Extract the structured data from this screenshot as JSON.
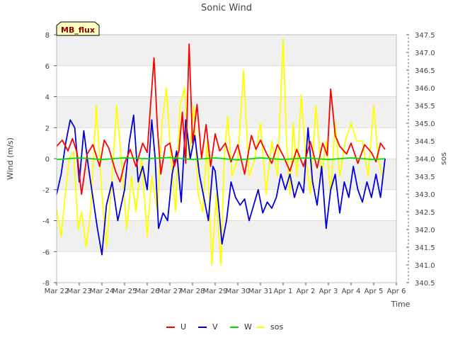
{
  "chart_data": {
    "type": "line",
    "title": "Sonic Wind",
    "xlabel": "Time",
    "ylabel": "Wind (m/s)",
    "y2label": "sos",
    "badge": "MB_flux",
    "x_ticks": [
      "Mar 22",
      "Mar 23",
      "Mar 24",
      "Mar 25",
      "Mar 26",
      "Mar 27",
      "Mar 28",
      "Mar 29",
      "Mar 30",
      "Mar 31",
      "Apr 1",
      "Apr 2",
      "Apr 3",
      "Apr 4",
      "Apr 5",
      "Apr 6"
    ],
    "xlim": [
      0,
      15
    ],
    "ylim": [
      -8,
      8
    ],
    "y_ticks": [
      "-8",
      "-6",
      "-4",
      "-2",
      "0",
      "2",
      "4",
      "6",
      "8"
    ],
    "y2lim": [
      340.5,
      347.5
    ],
    "y2_ticks": [
      "340.5",
      "341.0",
      "341.5",
      "342.0",
      "342.5",
      "343.0",
      "343.5",
      "344.0",
      "344.5",
      "345.0",
      "345.5",
      "346.0",
      "346.5",
      "347.0",
      "347.5"
    ],
    "legend_position": "bottom-center",
    "series": [
      {
        "name": "U",
        "color": "#ff0000",
        "axis": "left",
        "x": [
          0.0,
          0.25,
          0.5,
          0.7,
          0.9,
          1.1,
          1.35,
          1.6,
          1.9,
          2.1,
          2.3,
          2.6,
          2.8,
          3.0,
          3.25,
          3.5,
          3.8,
          4.0,
          4.15,
          4.3,
          4.45,
          4.6,
          4.8,
          5.0,
          5.2,
          5.4,
          5.55,
          5.7,
          5.85,
          6.0,
          6.2,
          6.4,
          6.6,
          6.8,
          7.0,
          7.2,
          7.45,
          7.7,
          8.0,
          8.3,
          8.6,
          8.8,
          9.0,
          9.25,
          9.5,
          9.75,
          10.0,
          10.3,
          10.6,
          10.9,
          11.2,
          11.5,
          11.75,
          11.95,
          12.1,
          12.3,
          12.5,
          12.8,
          13.0,
          13.3,
          13.6,
          13.9,
          14.1,
          14.3,
          14.5
        ],
        "values": [
          0.8,
          1.2,
          0.5,
          1.3,
          0.4,
          -2.3,
          0.3,
          0.9,
          -0.5,
          1.2,
          0.7,
          -0.8,
          -1.5,
          -0.3,
          0.6,
          -0.5,
          1.0,
          0.4,
          3.5,
          6.5,
          2.0,
          -1.0,
          0.8,
          1.0,
          -0.5,
          0.5,
          3.0,
          -0.3,
          7.4,
          1.0,
          3.5,
          0.0,
          2.2,
          -0.5,
          1.6,
          0.5,
          1.0,
          -0.2,
          0.9,
          -1.0,
          1.5,
          0.6,
          1.2,
          0.4,
          -0.3,
          0.9,
          0.2,
          -0.8,
          0.6,
          -0.5,
          1.1,
          -0.6,
          1.0,
          0.2,
          4.5,
          1.5,
          0.8,
          0.3,
          1.0,
          -0.3,
          0.9,
          0.4,
          -0.2,
          1.0,
          0.6
        ]
      },
      {
        "name": "V",
        "color": "#0000dd",
        "axis": "left",
        "x": [
          0.0,
          0.2,
          0.4,
          0.6,
          0.8,
          1.0,
          1.2,
          1.4,
          1.6,
          1.8,
          2.0,
          2.2,
          2.45,
          2.7,
          3.0,
          3.2,
          3.4,
          3.6,
          3.8,
          4.0,
          4.2,
          4.35,
          4.5,
          4.7,
          4.9,
          5.1,
          5.3,
          5.5,
          5.7,
          5.9,
          6.1,
          6.3,
          6.5,
          6.7,
          6.9,
          7.0,
          7.15,
          7.3,
          7.5,
          7.7,
          7.9,
          8.1,
          8.3,
          8.5,
          8.7,
          8.9,
          9.1,
          9.3,
          9.5,
          9.7,
          9.9,
          10.1,
          10.3,
          10.5,
          10.7,
          10.9,
          11.1,
          11.3,
          11.5,
          11.7,
          11.9,
          12.1,
          12.3,
          12.5,
          12.7,
          12.9,
          13.1,
          13.3,
          13.5,
          13.7,
          13.9,
          14.1,
          14.3,
          14.5
        ],
        "values": [
          -2.3,
          -1.0,
          1.0,
          2.5,
          2.0,
          -1.5,
          1.8,
          -0.5,
          -2.5,
          -4.5,
          -6.2,
          -3.0,
          -1.5,
          -4.0,
          -2.0,
          1.0,
          2.8,
          -1.5,
          -0.5,
          -2.0,
          2.5,
          0.0,
          -4.5,
          -3.5,
          -4.0,
          -1.0,
          0.5,
          -2.8,
          2.5,
          0.0,
          1.5,
          -1.0,
          -2.5,
          -4.0,
          -0.5,
          -0.8,
          -3.0,
          -5.5,
          -4.0,
          -1.5,
          -2.5,
          -3.0,
          -2.6,
          -4.0,
          -3.0,
          -2.0,
          -3.5,
          -2.8,
          -3.2,
          -2.5,
          -1.0,
          -2.0,
          -1.0,
          -2.5,
          -1.5,
          -2.2,
          2.0,
          -1.5,
          -3.0,
          -0.5,
          -4.5,
          -2.0,
          -1.0,
          -3.5,
          -1.5,
          -2.5,
          -0.5,
          -2.0,
          -2.8,
          -1.5,
          -2.5,
          -1.0,
          -2.5,
          0.0
        ]
      },
      {
        "name": "W",
        "color": "#00dd00",
        "axis": "left",
        "x": [
          0.0,
          1.0,
          2.0,
          3.0,
          4.0,
          5.0,
          6.0,
          7.0,
          8.0,
          9.0,
          10.0,
          11.0,
          12.0,
          13.0,
          14.0,
          14.5
        ],
        "values": [
          -0.05,
          0.05,
          -0.05,
          0.05,
          0.0,
          0.08,
          -0.05,
          0.05,
          -0.08,
          0.05,
          -0.05,
          0.05,
          -0.05,
          0.05,
          -0.05,
          0.0
        ]
      },
      {
        "name": "sos",
        "color": "#ffff00",
        "axis": "right",
        "x": [
          0.0,
          0.2,
          0.35,
          0.55,
          0.75,
          0.95,
          1.1,
          1.3,
          1.5,
          1.75,
          2.0,
          2.2,
          2.45,
          2.65,
          2.85,
          3.1,
          3.3,
          3.5,
          3.75,
          4.0,
          4.2,
          4.45,
          4.65,
          4.85,
          5.05,
          5.25,
          5.45,
          5.65,
          5.85,
          6.05,
          6.25,
          6.45,
          6.65,
          6.85,
          7.05,
          7.25,
          7.4,
          7.55,
          7.75,
          8.0,
          8.25,
          8.5,
          8.75,
          9.0,
          9.25,
          9.5,
          9.75,
          10.0,
          10.15,
          10.3,
          10.45,
          10.6,
          10.8,
          11.0,
          11.2,
          11.45,
          11.7,
          11.9,
          12.1,
          12.3,
          12.5,
          12.75,
          13.0,
          13.25,
          13.5,
          13.75,
          14.0,
          14.2,
          14.4,
          14.5
        ],
        "values": [
          342.6,
          341.8,
          342.8,
          344.0,
          344.2,
          342.0,
          342.5,
          341.5,
          342.5,
          345.5,
          343.0,
          341.5,
          343.5,
          345.5,
          344.0,
          342.0,
          343.5,
          342.5,
          344.0,
          341.8,
          343.5,
          342.5,
          345.0,
          346.0,
          344.0,
          342.5,
          345.5,
          346.0,
          344.0,
          345.5,
          343.0,
          342.5,
          344.5,
          341.0,
          343.0,
          341.0,
          344.0,
          345.2,
          343.5,
          344.0,
          346.5,
          343.5,
          344.0,
          345.0,
          343.0,
          344.5,
          343.5,
          347.4,
          344.5,
          343.0,
          345.0,
          343.5,
          345.8,
          344.0,
          343.0,
          345.5,
          343.5,
          344.5,
          343.0,
          345.0,
          343.5,
          344.5,
          345.0,
          344.5,
          344.5,
          343.5,
          345.5,
          344.0,
          343.5,
          344.0
        ]
      }
    ]
  }
}
